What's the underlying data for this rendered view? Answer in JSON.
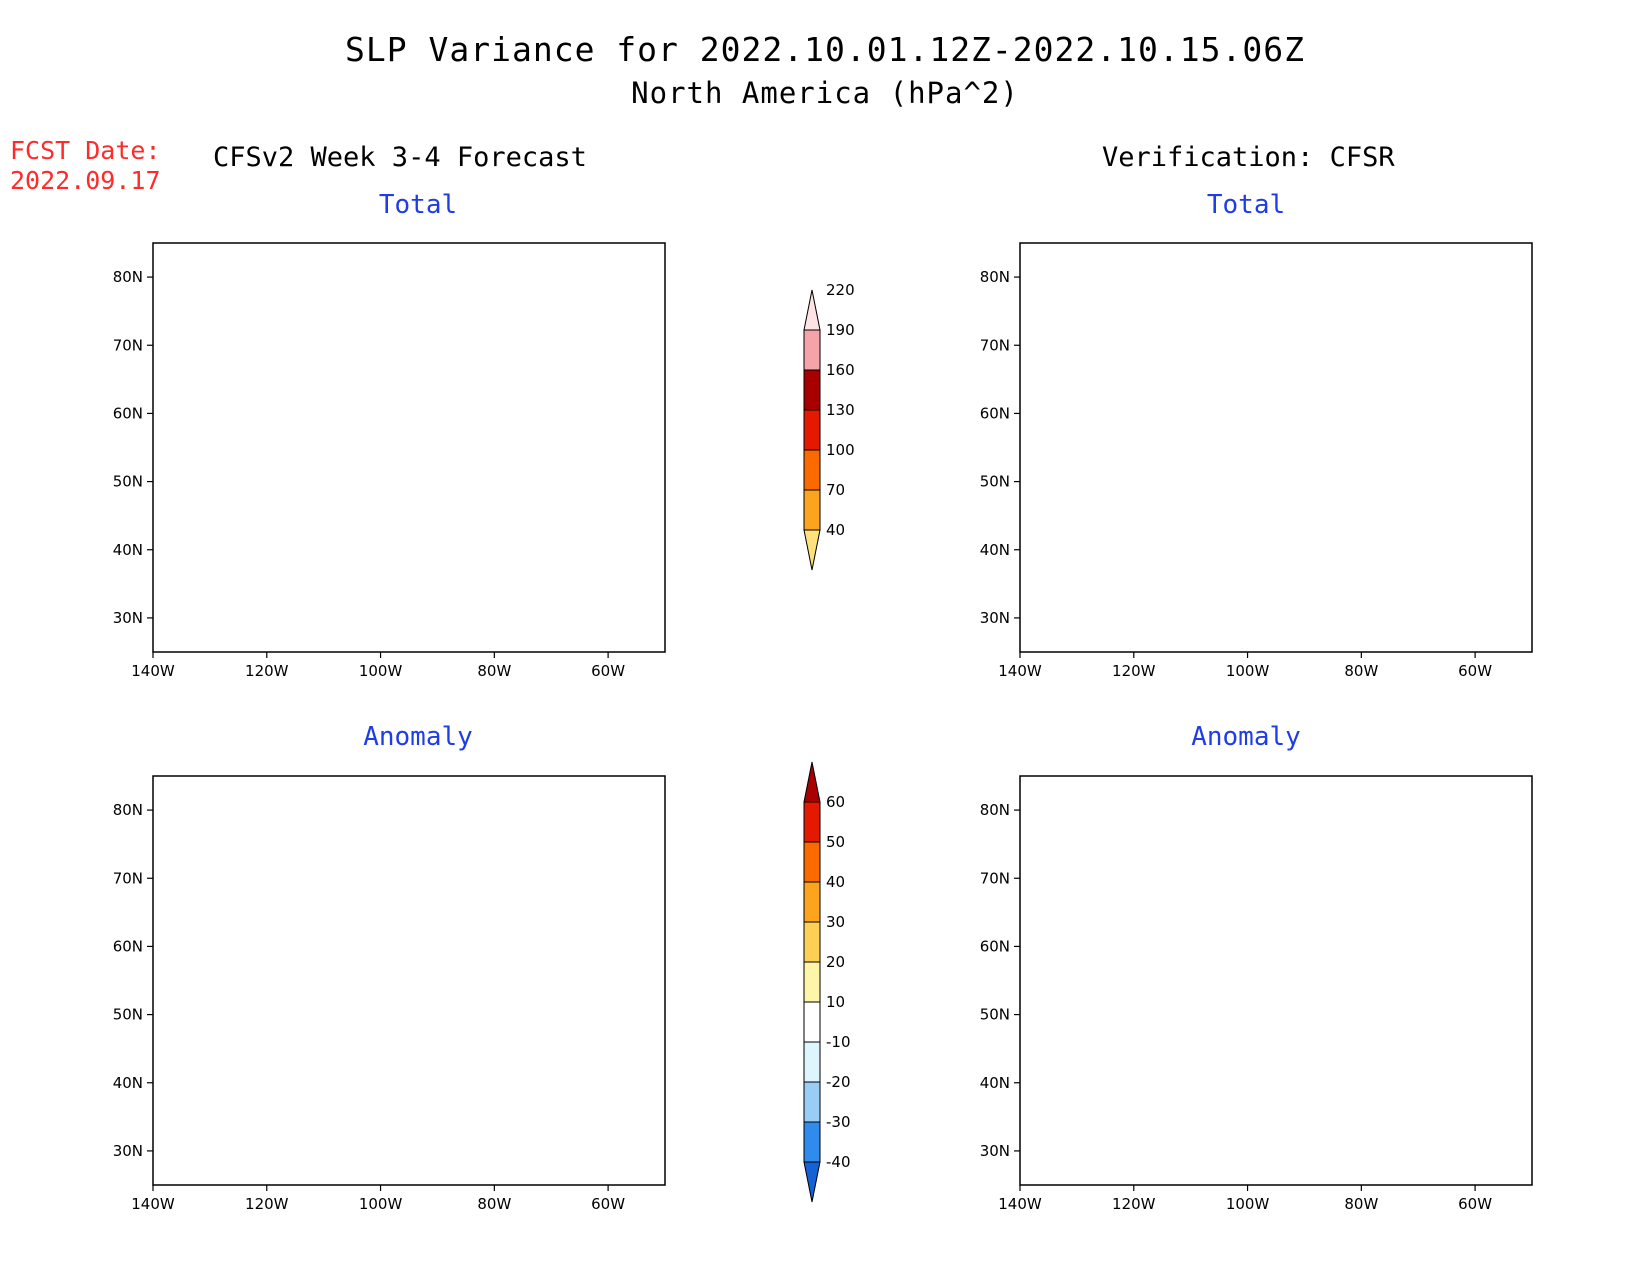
{
  "title": "SLP Variance for 2022.10.01.12Z-2022.10.15.06Z",
  "subtitle": "North America (hPa^2)",
  "fcst_label": "FCST Date:",
  "fcst_date": "2022.09.17",
  "left_column_title": "CFSv2 Week 3-4 Forecast",
  "right_column_title": "Verification: CFSR",
  "panels": [
    {
      "id": "fcst-total",
      "title": "Total"
    },
    {
      "id": "ver-total",
      "title": "Total"
    },
    {
      "id": "fcst-anom",
      "title": "Anomaly"
    },
    {
      "id": "ver-anom",
      "title": "Anomaly"
    }
  ],
  "axes": {
    "lon_ticks": [
      "140W",
      "120W",
      "100W",
      "80W",
      "60W"
    ],
    "lat_ticks": [
      "80N",
      "70N",
      "60N",
      "50N",
      "40N",
      "30N"
    ],
    "lon_range": [
      -140,
      -50
    ],
    "lat_range": [
      25,
      85
    ]
  },
  "total_colorbar": {
    "levels": [
      "40",
      "70",
      "100",
      "130",
      "160",
      "190",
      "220"
    ],
    "colors": [
      "#fde17a",
      "#fda41e",
      "#fb6a00",
      "#e31a00",
      "#a80000",
      "#f4a3a8",
      "#fde3e3"
    ]
  },
  "anomaly_colorbar": {
    "levels": [
      "-40",
      "-30",
      "-20",
      "-10",
      "10",
      "20",
      "30",
      "40",
      "50",
      "60"
    ],
    "colors": [
      "#1561d6",
      "#2f8ced",
      "#9acdf5",
      "#dff5fd",
      "#ffffff",
      "#fff5a8",
      "#fdcf55",
      "#fda41e",
      "#fb6a00",
      "#e31a00",
      "#a80000"
    ]
  }
}
